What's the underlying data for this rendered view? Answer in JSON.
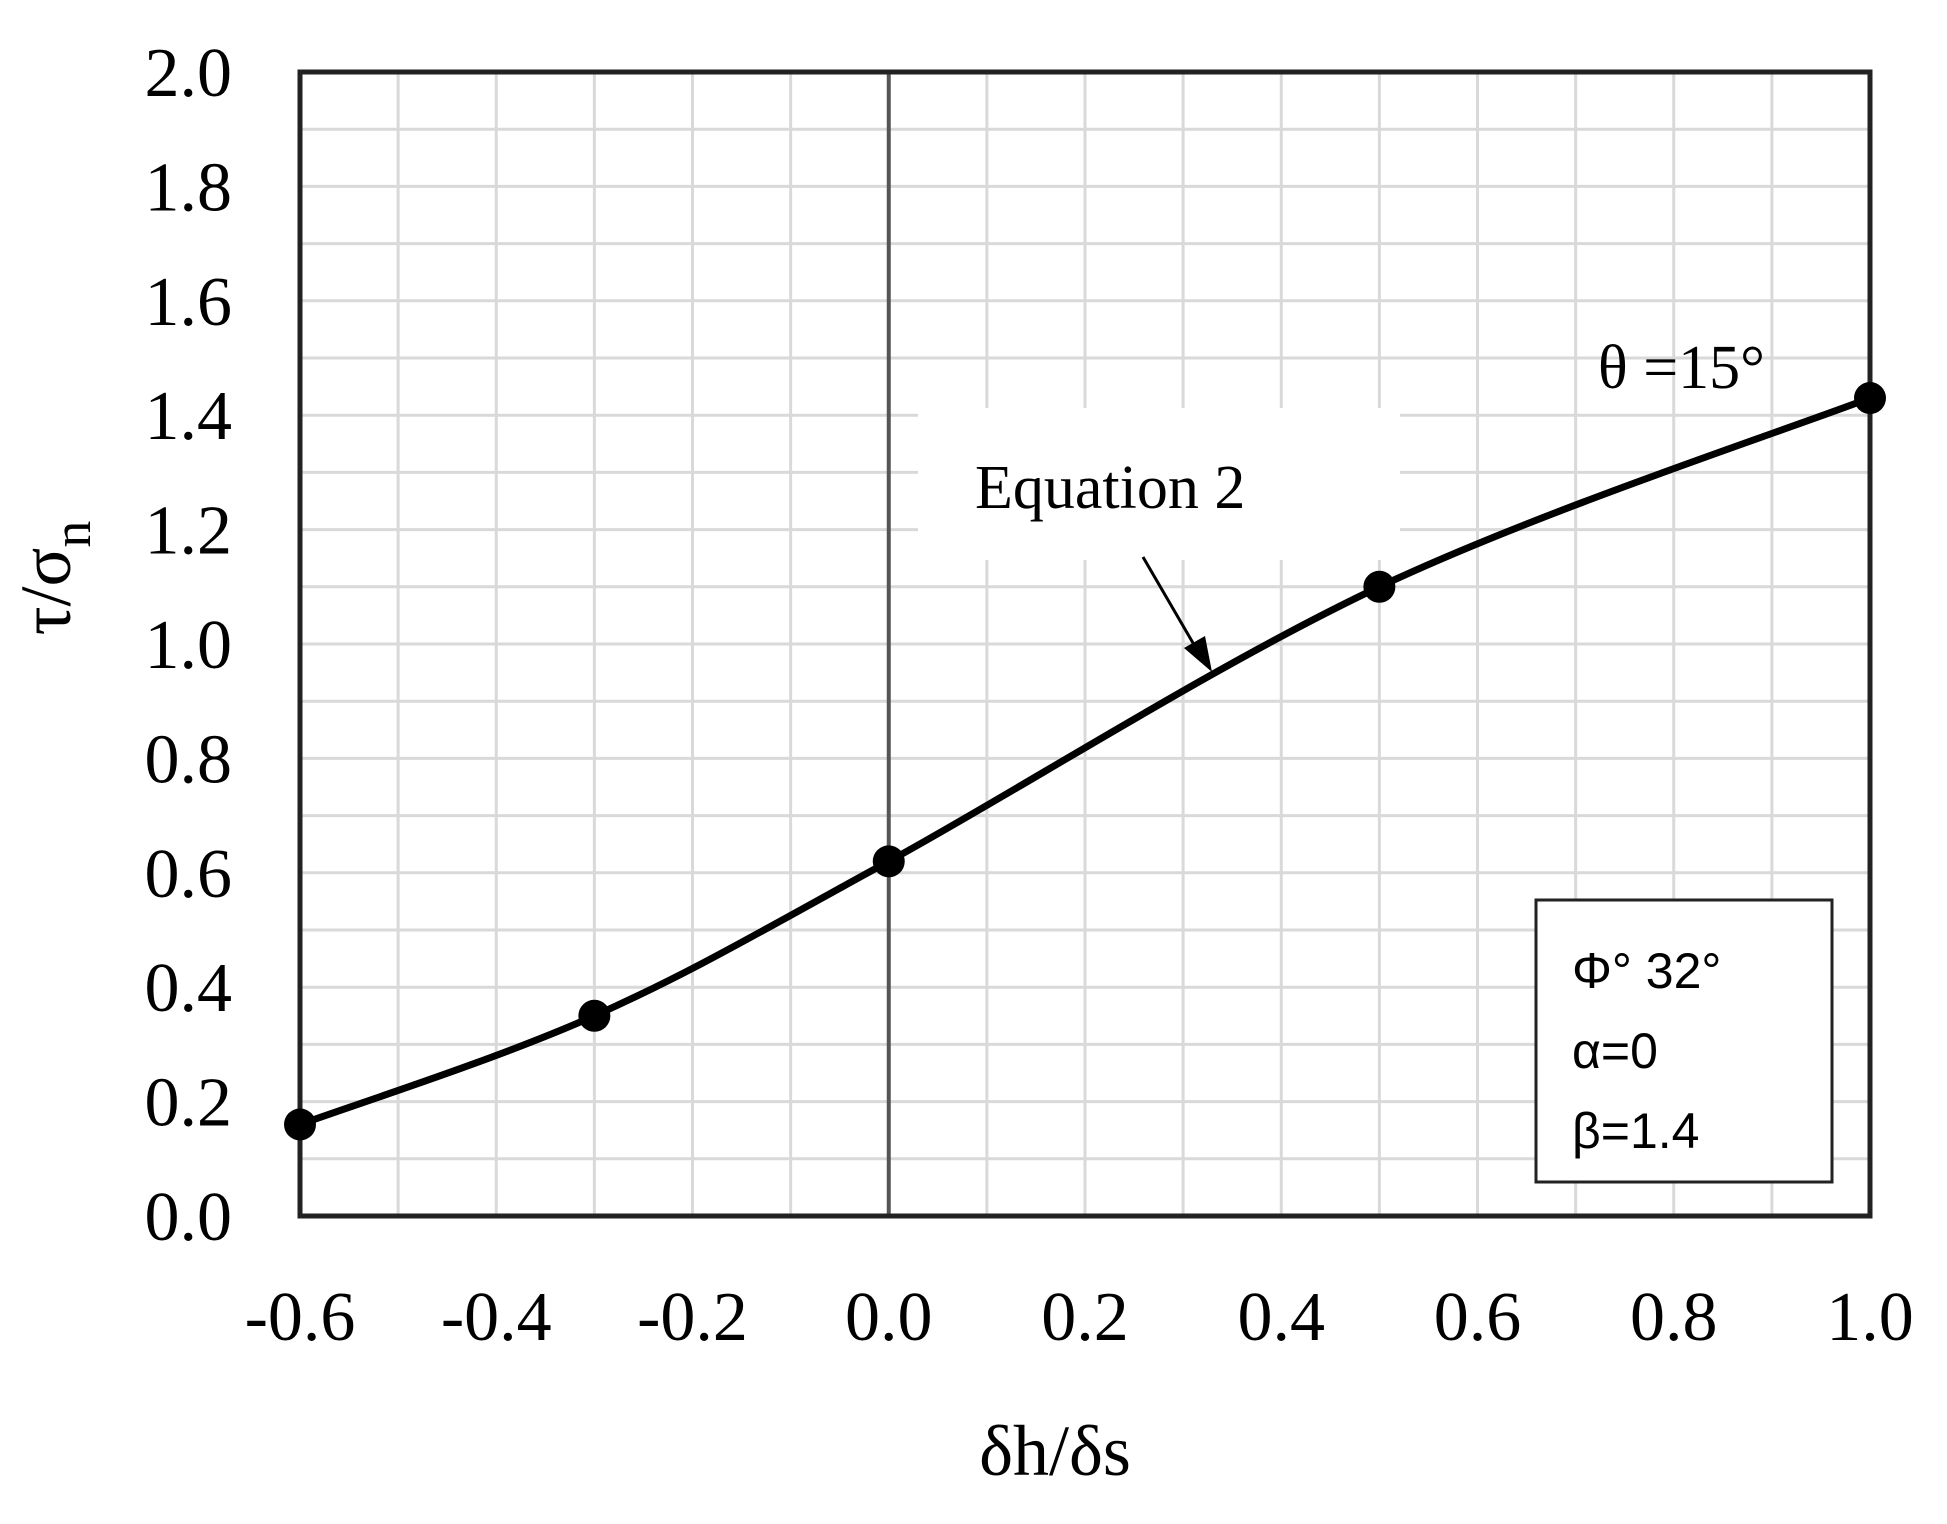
{
  "chart_data": {
    "type": "line",
    "title": "",
    "xlabel": "δh/δs",
    "ylabel_main": "τ/σ",
    "ylabel_sub": "n",
    "xlim": [
      -0.6,
      1.0
    ],
    "ylim": [
      0.0,
      2.0
    ],
    "x_ticks": [
      "-0.6",
      "-0.4",
      "-0.2",
      "0.0",
      "0.2",
      "0.4",
      "0.6",
      "0.8",
      "1.0"
    ],
    "y_ticks": [
      "0.0",
      "0.2",
      "0.4",
      "0.6",
      "0.8",
      "1.0",
      "1.2",
      "1.4",
      "1.6",
      "1.8",
      "2.0"
    ],
    "grid": true,
    "series": [
      {
        "points": [
          {
            "x": -0.6,
            "y": 0.16
          },
          {
            "x": -0.3,
            "y": 0.35
          },
          {
            "x": 0.0,
            "y": 0.62
          },
          {
            "x": 0.5,
            "y": 1.1
          },
          {
            "x": 1.0,
            "y": 1.43
          }
        ]
      }
    ],
    "annotations": {
      "curve_label": "Equation 2",
      "theta_label": "θ =15°",
      "params": [
        "Φ° 32°",
        "α=0",
        "β=1.4"
      ]
    }
  }
}
